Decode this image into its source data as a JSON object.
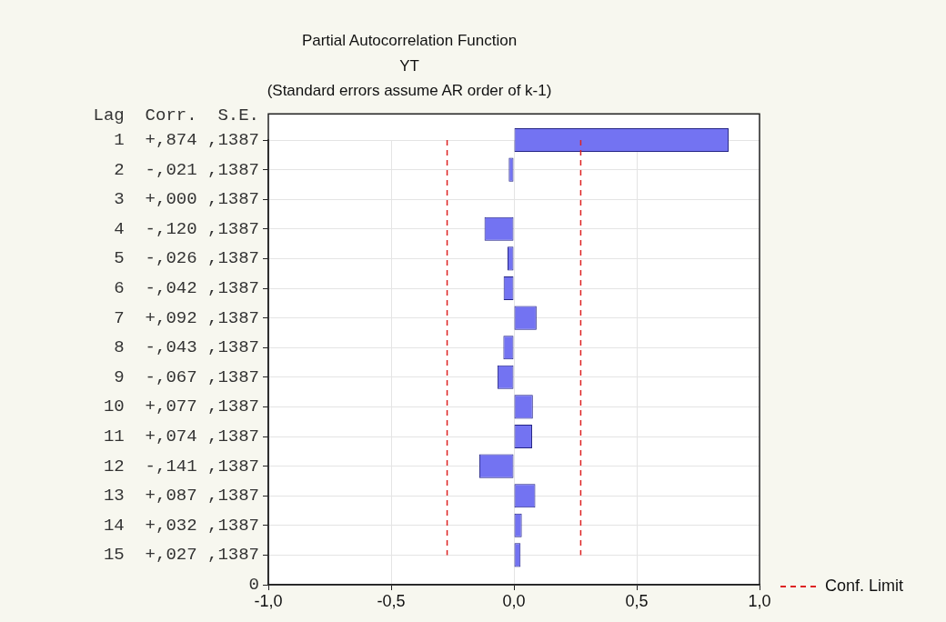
{
  "chart_data": {
    "type": "bar",
    "orientation": "horizontal",
    "title": "Partial Autocorrelation Function",
    "subtitle": "YT",
    "annotations": [
      "(Standard errors assume AR order of k-1)",
      "Lag  Corr.  S.E."
    ],
    "categories": [
      " 1  +,874 ,1387",
      " 2  -,021 ,1387",
      " 3  +,000 ,1387",
      " 4  -,120 ,1387",
      " 5  -,026 ,1387",
      " 6  -,042 ,1387",
      " 7  +,092 ,1387",
      " 8  -,043 ,1387",
      " 9  -,067 ,1387",
      "10  +,077 ,1387",
      "11  +,074 ,1387",
      "12  -,141 ,1387",
      "13  +,087 ,1387",
      "14  +,032 ,1387",
      "15  +,027 ,1387",
      "0"
    ],
    "values": [
      0.874,
      -0.021,
      0.0,
      -0.12,
      -0.026,
      -0.042,
      0.092,
      -0.043,
      -0.067,
      0.077,
      0.074,
      -0.141,
      0.087,
      0.032,
      0.027,
      null
    ],
    "color": "#7373f2",
    "xlim": [
      -1,
      1
    ],
    "xticks": [
      {
        "value": -1,
        "label": "-1,0"
      },
      {
        "value": -0.5,
        "label": "-0,5"
      },
      {
        "value": 0,
        "label": "0,0"
      },
      {
        "value": 0.5,
        "label": "0,5"
      },
      {
        "value": 1,
        "label": "1,0"
      }
    ],
    "ref_lines": [
      {
        "axis": "x",
        "value": -0.272,
        "label": "Conf. Limit",
        "color": "#dd2222",
        "line_style": "dashed"
      },
      {
        "axis": "x",
        "value": 0.272,
        "color": "#dd2222",
        "line_style": "dashed"
      }
    ],
    "grid": true,
    "legend": "bottom right"
  }
}
